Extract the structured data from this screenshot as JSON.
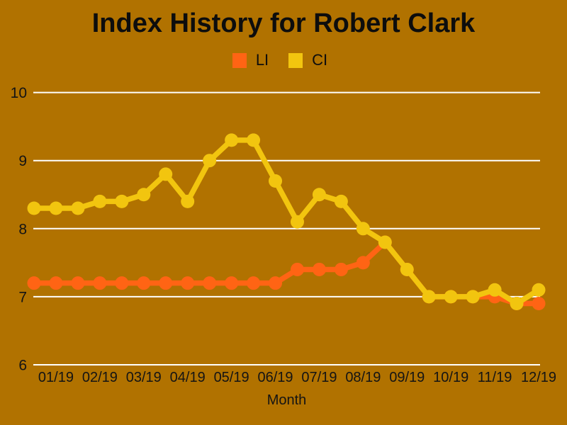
{
  "page": {
    "background_color": "#b17200",
    "text_color": "#0d0d0d",
    "gridline_color": "#ffffff"
  },
  "chart_data": {
    "type": "line",
    "title": "Index History for Robert Clark",
    "xlabel": "Month",
    "ylabel": "",
    "ylim": [
      6,
      10
    ],
    "yticks": [
      6,
      7,
      8,
      9,
      10
    ],
    "grid": "horizontal-white-lines",
    "legend_position": "top-center",
    "points_per_series": 24,
    "x_tick_labels": [
      "01/19",
      "02/19",
      "03/19",
      "04/19",
      "05/19",
      "06/19",
      "07/19",
      "08/19",
      "09/19",
      "10/19",
      "11/19",
      "12/19"
    ],
    "x_tick_point_indices": [
      1,
      3,
      5,
      7,
      9,
      11,
      13,
      15,
      17,
      19,
      21,
      23
    ],
    "series": [
      {
        "name": "LI",
        "color": "#ff6414",
        "values": [
          7.2,
          7.2,
          7.2,
          7.2,
          7.2,
          7.2,
          7.2,
          7.2,
          7.2,
          7.2,
          7.2,
          7.2,
          7.4,
          7.4,
          7.4,
          7.5,
          7.8,
          7.4,
          7.0,
          7.0,
          7.0,
          7.0,
          6.9,
          6.9
        ]
      },
      {
        "name": "CI",
        "color": "#f2c50f",
        "values": [
          8.3,
          8.3,
          8.3,
          8.4,
          8.4,
          8.5,
          8.8,
          8.4,
          9.0,
          9.3,
          9.3,
          8.7,
          8.1,
          8.5,
          8.4,
          8.0,
          7.8,
          7.4,
          7.0,
          7.0,
          7.0,
          7.1,
          6.9,
          7.1
        ]
      }
    ]
  }
}
